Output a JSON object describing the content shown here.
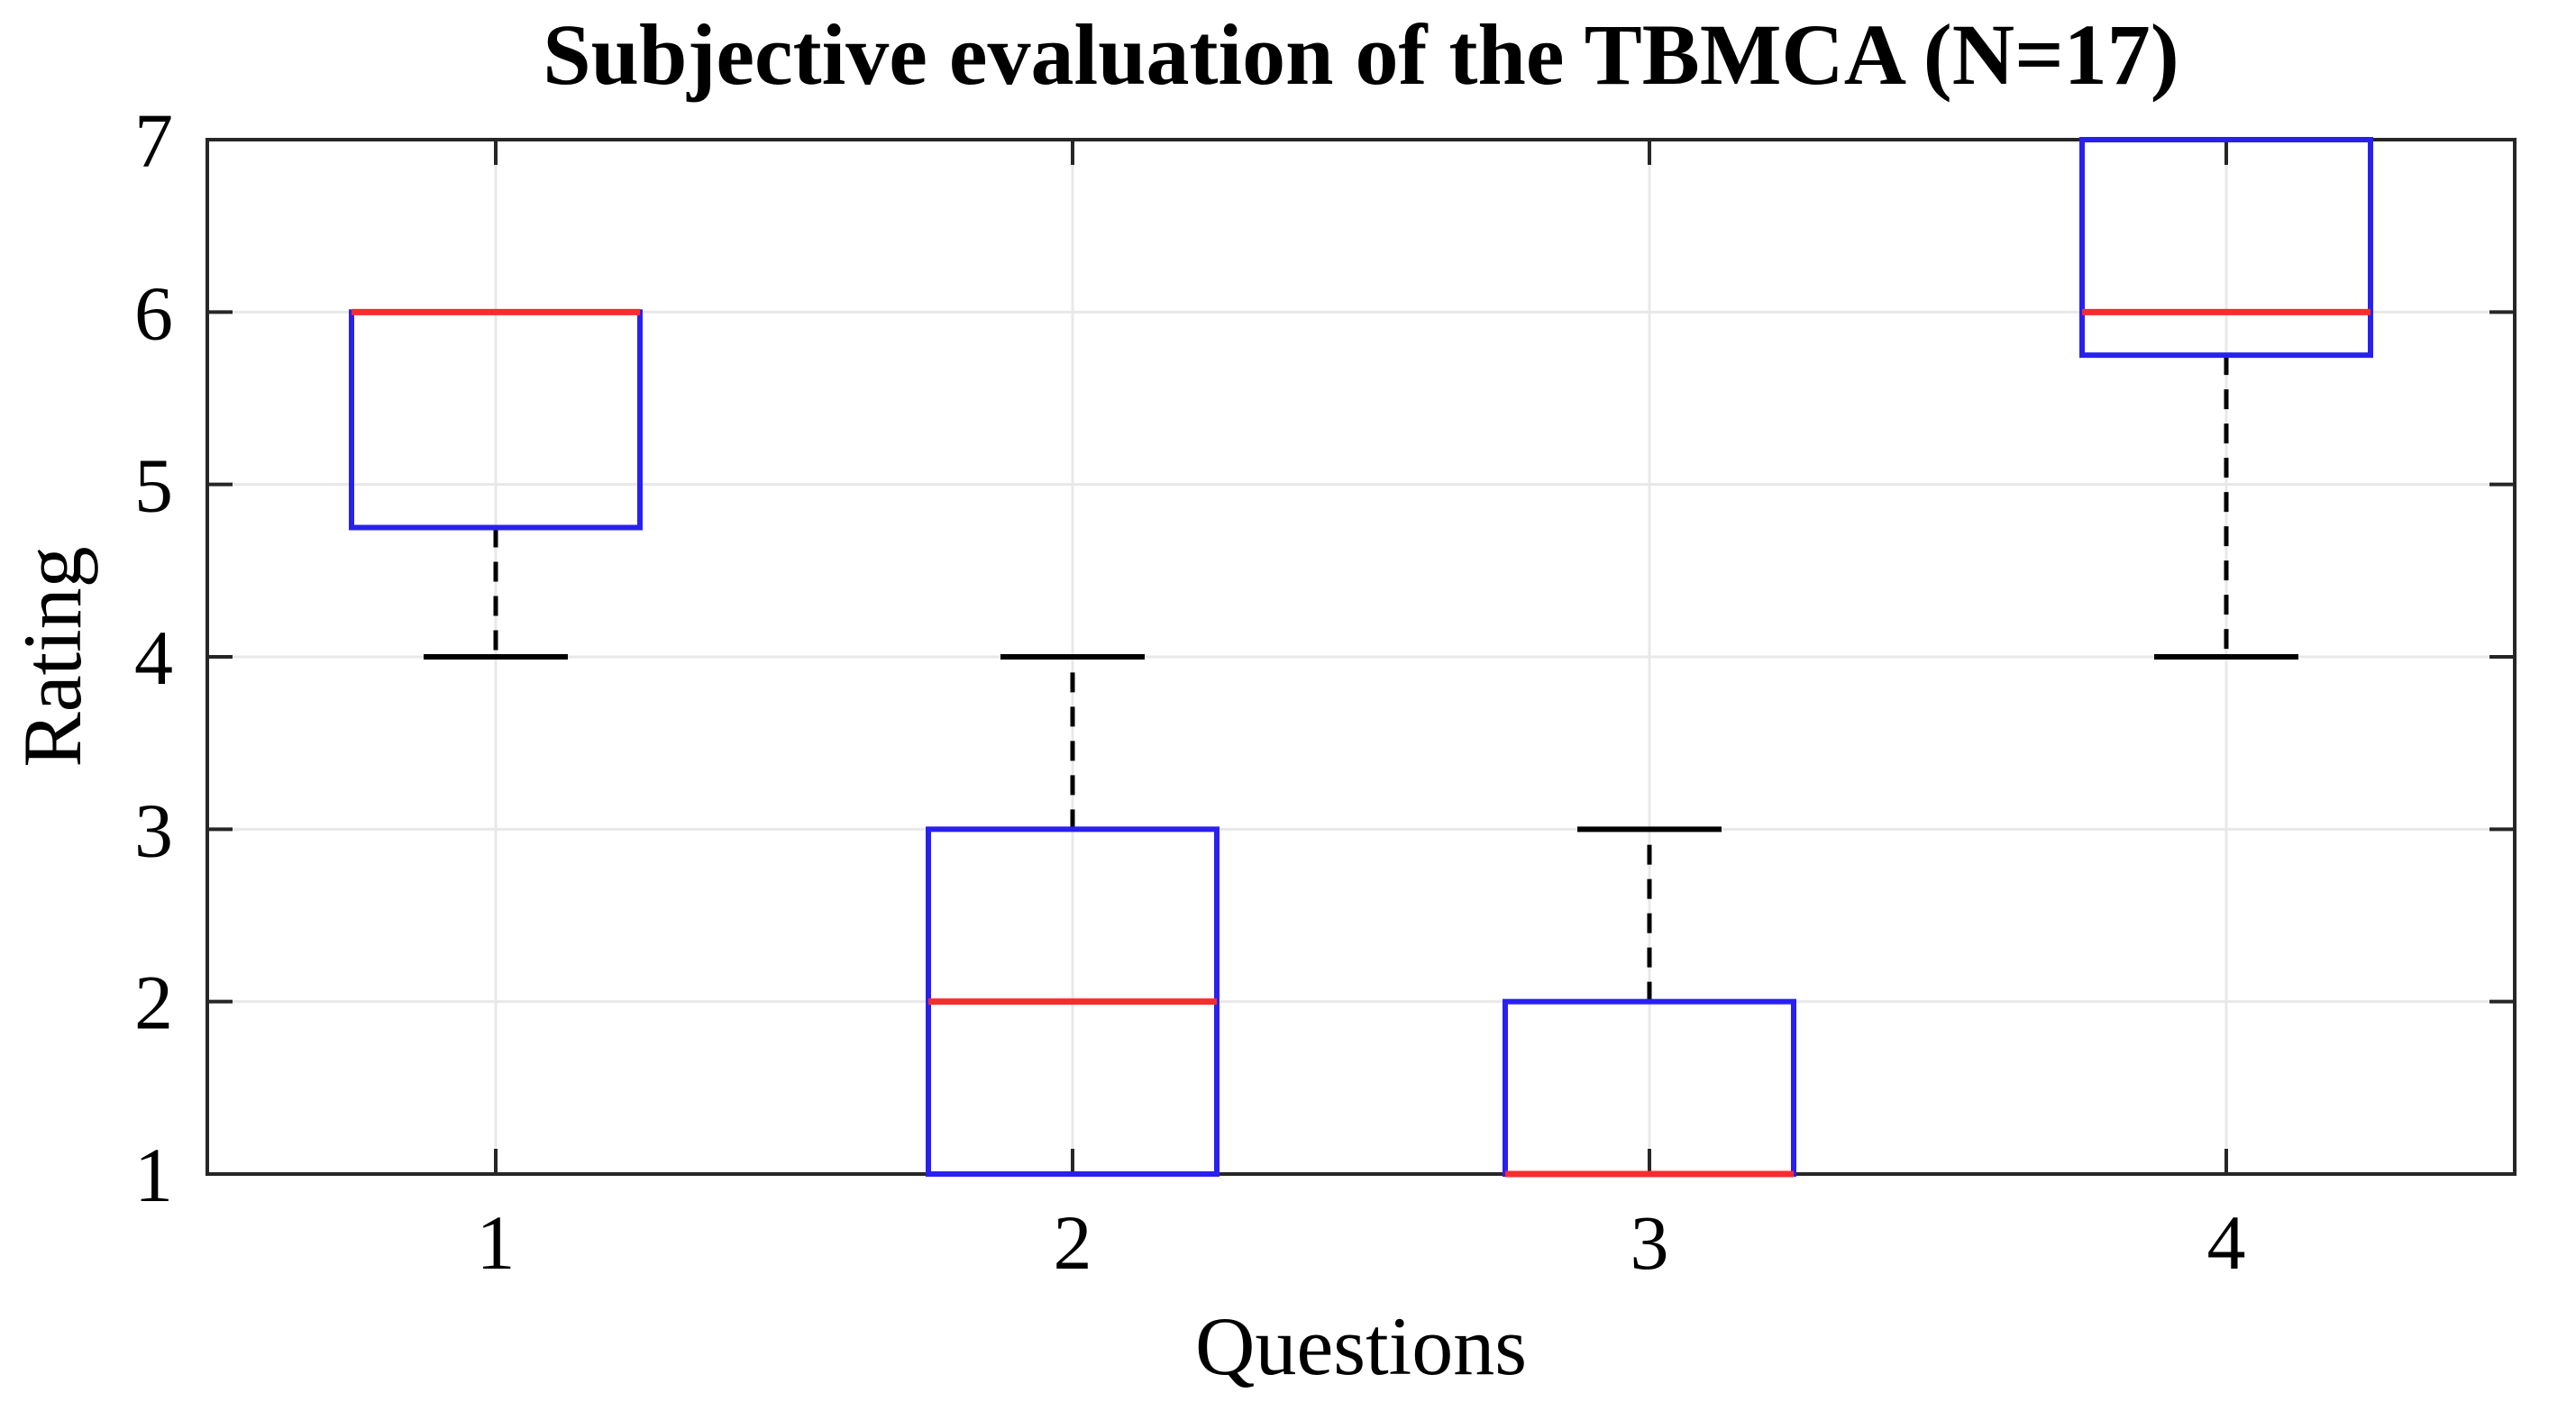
{
  "figure": {
    "background_color": "#ffffff"
  },
  "chart_data": {
    "type": "box",
    "title": "Subjective evaluation of the TBMCA (N=17)",
    "xlabel": "Questions",
    "ylabel": "Rating",
    "categories": [
      "1",
      "2",
      "3",
      "4"
    ],
    "ylim": [
      1,
      7
    ],
    "yticks": [
      1,
      2,
      3,
      4,
      5,
      6,
      7
    ],
    "grid": true,
    "legend": "none",
    "boxes": [
      {
        "category": "1",
        "whisker_low": 4,
        "q1": 4.75,
        "median": 6,
        "q3": 6,
        "whisker_high": 6
      },
      {
        "category": "2",
        "whisker_low": 1,
        "q1": 1,
        "median": 2,
        "q3": 3,
        "whisker_high": 4
      },
      {
        "category": "3",
        "whisker_low": 1,
        "q1": 1,
        "median": 1,
        "q3": 2,
        "whisker_high": 3
      },
      {
        "category": "4",
        "whisker_low": 4,
        "q1": 5.75,
        "median": 6,
        "q3": 7,
        "whisker_high": 7
      }
    ],
    "colors": {
      "box": "#2920f0",
      "median": "#f52d2d",
      "whisker": "#000000",
      "cap": "#000000",
      "grid": "#e8e8e8",
      "axis": "#262626",
      "text": "#000000",
      "background": "#ffffff"
    }
  }
}
